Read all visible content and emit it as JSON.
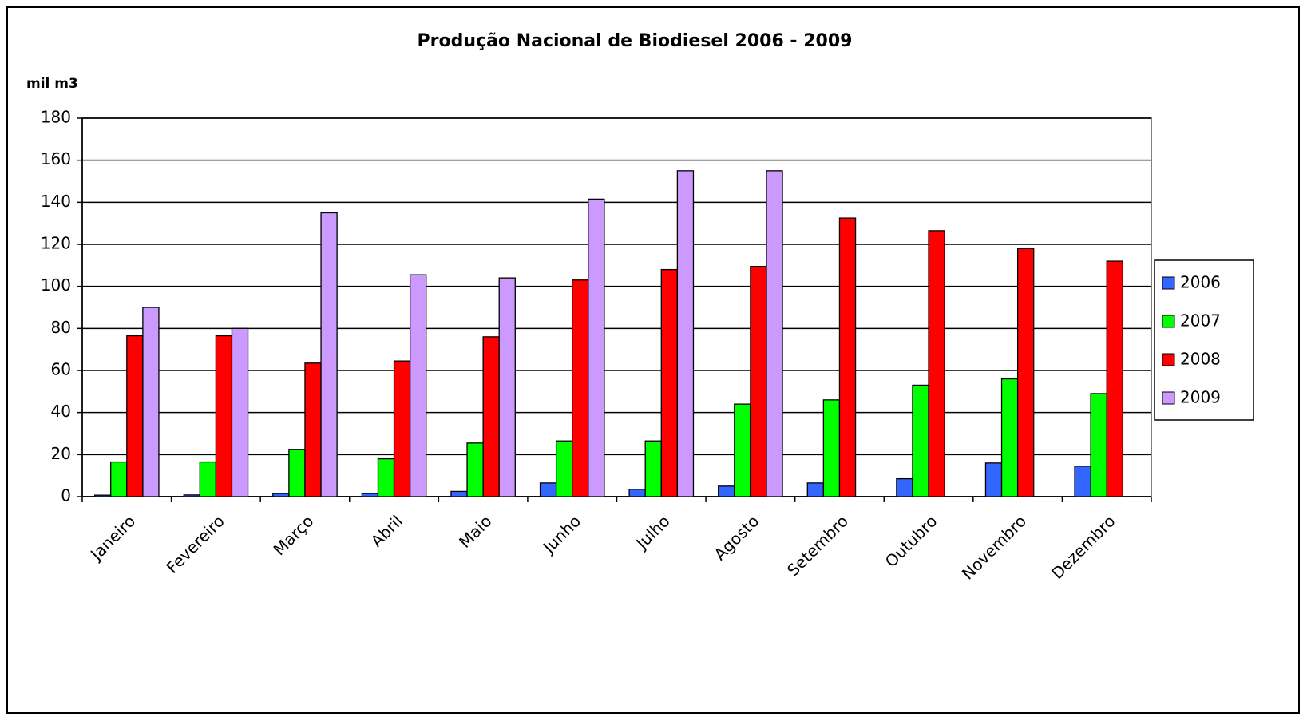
{
  "chart_data": {
    "type": "bar",
    "title": "Produção Nacional de Biodiesel 2006 - 2009",
    "y_label": "mil m3",
    "categories": [
      "Janeiro",
      "Fevereiro",
      "Março",
      "Abril",
      "Maio",
      "Junho",
      "Julho",
      "Agosto",
      "Setembro",
      "Outubro",
      "Novembro",
      "Dezembro"
    ],
    "series": [
      {
        "name": "2006",
        "color": "#3366ff",
        "values": [
          0.7,
          0.8,
          1.5,
          1.5,
          2.5,
          6.5,
          3.5,
          5,
          6.5,
          8.5,
          16,
          14.5
        ]
      },
      {
        "name": "2007",
        "color": "#00ff00",
        "values": [
          16.5,
          16.5,
          22.5,
          18,
          25.5,
          26.5,
          26.5,
          44,
          46,
          53,
          56,
          49
        ]
      },
      {
        "name": "2008",
        "color": "#ff0000",
        "values": [
          76.5,
          76.5,
          63.5,
          64.5,
          76,
          103,
          108,
          109.5,
          132.5,
          126.5,
          118,
          112
        ]
      },
      {
        "name": "2009",
        "color": "#cc99ff",
        "values": [
          90,
          80,
          135,
          105.5,
          104,
          141.5,
          155,
          155,
          null,
          null,
          null,
          null
        ]
      }
    ],
    "ylim": [
      0,
      180
    ],
    "yticks": [
      0,
      20,
      40,
      60,
      80,
      100,
      120,
      140,
      160,
      180
    ],
    "grid": true,
    "legend": "right"
  }
}
